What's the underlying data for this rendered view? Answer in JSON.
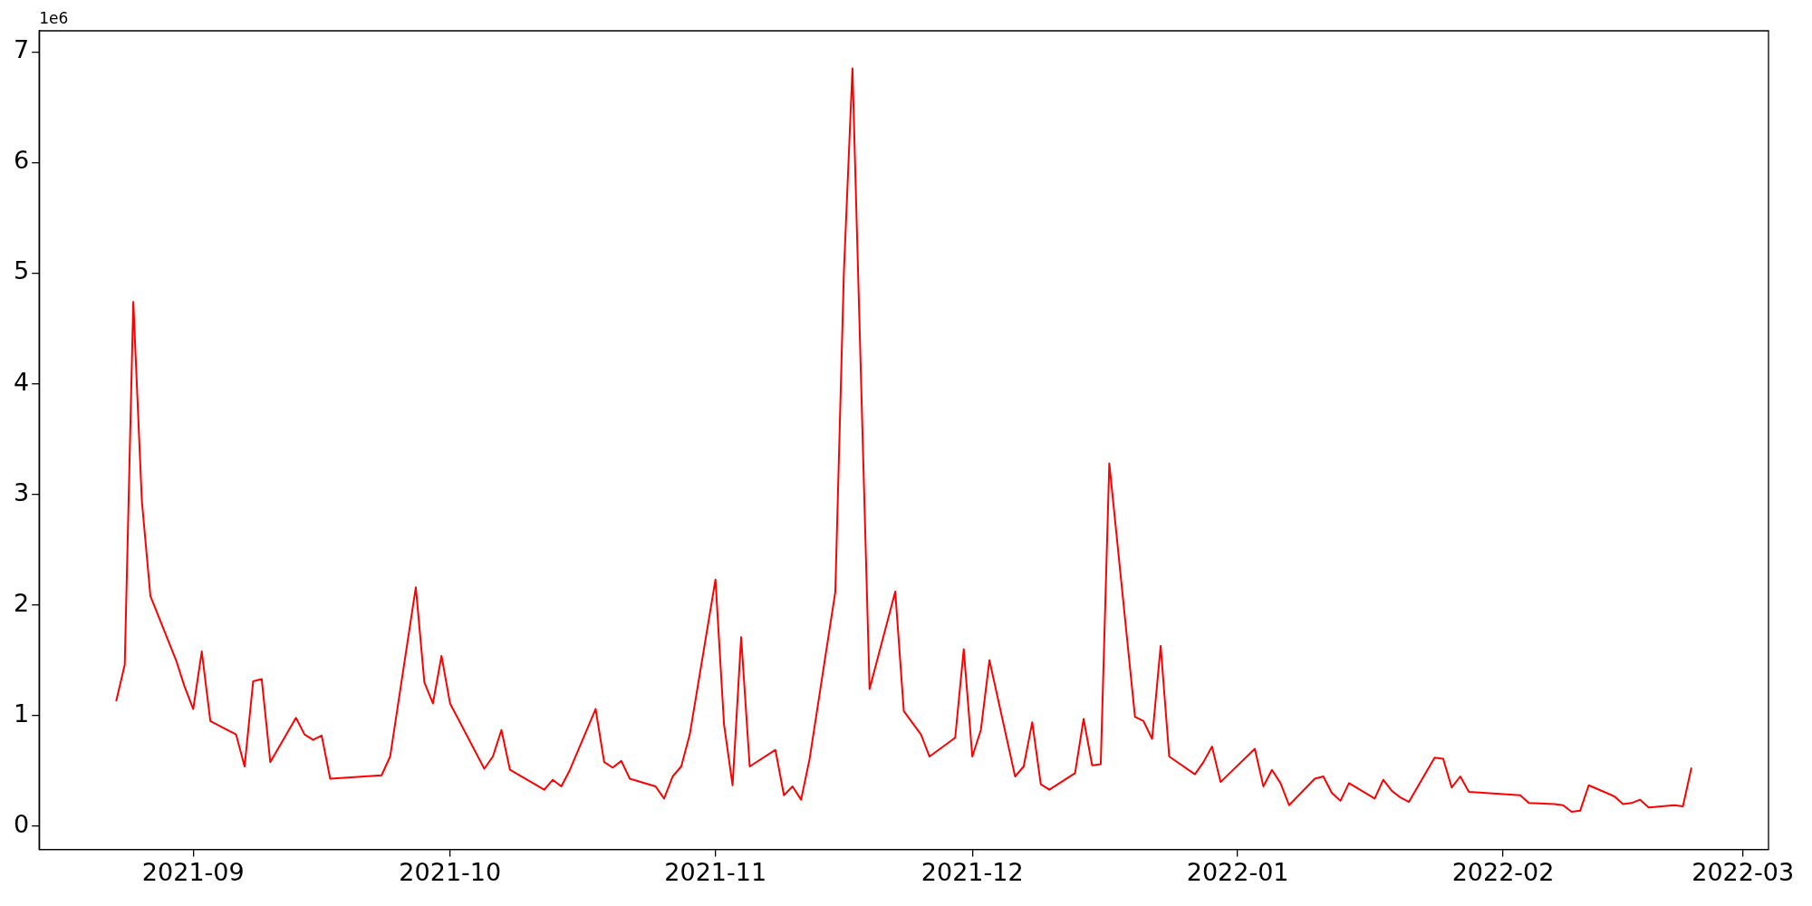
{
  "chart_data": {
    "type": "line",
    "x": [
      "2021-08-23",
      "2021-08-24",
      "2021-08-25",
      "2021-08-26",
      "2021-08-27",
      "2021-08-30",
      "2021-08-31",
      "2021-09-01",
      "2021-09-02",
      "2021-09-03",
      "2021-09-06",
      "2021-09-07",
      "2021-09-08",
      "2021-09-09",
      "2021-09-10",
      "2021-09-13",
      "2021-09-14",
      "2021-09-15",
      "2021-09-16",
      "2021-09-17",
      "2021-09-23",
      "2021-09-24",
      "2021-09-27",
      "2021-09-28",
      "2021-09-29",
      "2021-09-30",
      "2021-10-01",
      "2021-10-05",
      "2021-10-06",
      "2021-10-07",
      "2021-10-08",
      "2021-10-12",
      "2021-10-13",
      "2021-10-14",
      "2021-10-15",
      "2021-10-18",
      "2021-10-19",
      "2021-10-20",
      "2021-10-21",
      "2021-10-22",
      "2021-10-25",
      "2021-10-26",
      "2021-10-27",
      "2021-10-28",
      "2021-10-29",
      "2021-11-01",
      "2021-11-02",
      "2021-11-03",
      "2021-11-04",
      "2021-11-05",
      "2021-11-08",
      "2021-11-09",
      "2021-11-10",
      "2021-11-11",
      "2021-11-12",
      "2021-11-15",
      "2021-11-16",
      "2021-11-17",
      "2021-11-19",
      "2021-11-22",
      "2021-11-23",
      "2021-11-25",
      "2021-11-26",
      "2021-11-29",
      "2021-11-30",
      "2021-12-01",
      "2021-12-02",
      "2021-12-03",
      "2021-12-06",
      "2021-12-07",
      "2021-12-08",
      "2021-12-09",
      "2021-12-10",
      "2021-12-13",
      "2021-12-14",
      "2021-12-15",
      "2021-12-16",
      "2021-12-17",
      "2021-12-20",
      "2021-12-21",
      "2021-12-22",
      "2021-12-23",
      "2021-12-24",
      "2021-12-27",
      "2021-12-28",
      "2021-12-29",
      "2021-12-30",
      "2022-01-03",
      "2022-01-04",
      "2022-01-05",
      "2022-01-06",
      "2022-01-07",
      "2022-01-10",
      "2022-01-11",
      "2022-01-12",
      "2022-01-13",
      "2022-01-14",
      "2022-01-17",
      "2022-01-18",
      "2022-01-19",
      "2022-01-20",
      "2022-01-21",
      "2022-01-24",
      "2022-01-25",
      "2022-01-26",
      "2022-01-27",
      "2022-01-28",
      "2022-02-03",
      "2022-02-04",
      "2022-02-07",
      "2022-02-08",
      "2022-02-09",
      "2022-02-10",
      "2022-02-11",
      "2022-02-14",
      "2022-02-15",
      "2022-02-16",
      "2022-02-17",
      "2022-02-18",
      "2022-02-21",
      "2022-02-22",
      "2022-02-23"
    ],
    "series": [
      {
        "color": "#ff0000",
        "values": [
          1.13,
          1.46,
          4.74,
          2.94,
          2.08,
          1.5,
          1.26,
          1.06,
          1.58,
          0.95,
          0.83,
          0.54,
          1.31,
          1.33,
          0.58,
          0.98,
          0.83,
          0.78,
          0.82,
          0.43,
          0.46,
          0.63,
          2.16,
          1.3,
          1.11,
          1.54,
          1.11,
          0.52,
          0.63,
          0.87,
          0.51,
          0.33,
          0.42,
          0.36,
          0.51,
          1.06,
          0.58,
          0.53,
          0.59,
          0.43,
          0.36,
          0.25,
          0.45,
          0.54,
          0.83,
          2.23,
          0.92,
          0.37,
          1.71,
          0.54,
          0.69,
          0.28,
          0.36,
          0.24,
          0.61,
          2.12,
          5.01,
          6.85,
          1.24,
          2.12,
          1.04,
          0.83,
          0.63,
          0.8,
          1.6,
          0.63,
          0.87,
          1.5,
          0.45,
          0.54,
          0.94,
          0.38,
          0.33,
          0.48,
          0.97,
          0.55,
          0.56,
          3.28,
          0.99,
          0.95,
          0.79,
          1.63,
          0.63,
          0.47,
          0.58,
          0.72,
          0.4,
          0.7,
          0.36,
          0.51,
          0.39,
          0.19,
          0.43,
          0.45,
          0.3,
          0.23,
          0.39,
          0.25,
          0.42,
          0.32,
          0.26,
          0.22,
          0.62,
          0.61,
          0.35,
          0.45,
          0.31,
          0.28,
          0.21,
          0.2,
          0.19,
          0.13,
          0.14,
          0.37,
          0.27,
          0.2,
          0.21,
          0.24,
          0.17,
          0.19,
          0.18,
          0.53
        ]
      }
    ],
    "xlim": [
      "2021-08-14",
      "2022-03-04"
    ],
    "xticks": [
      {
        "value": "2021-09-01",
        "label": "2021-09"
      },
      {
        "value": "2021-10-01",
        "label": "2021-10"
      },
      {
        "value": "2021-11-01",
        "label": "2021-11"
      },
      {
        "value": "2021-12-01",
        "label": "2021-12"
      },
      {
        "value": "2022-01-01",
        "label": "2022-01"
      },
      {
        "value": "2022-02-01",
        "label": "2022-02"
      },
      {
        "value": "2022-03-01",
        "label": "2022-03"
      }
    ],
    "ylim": [
      -0.21,
      7.19
    ],
    "yticks": [
      0,
      1,
      2,
      3,
      4,
      5,
      6,
      7
    ],
    "annotations": [
      "1e6"
    ],
    "grid": false,
    "legend": false
  }
}
